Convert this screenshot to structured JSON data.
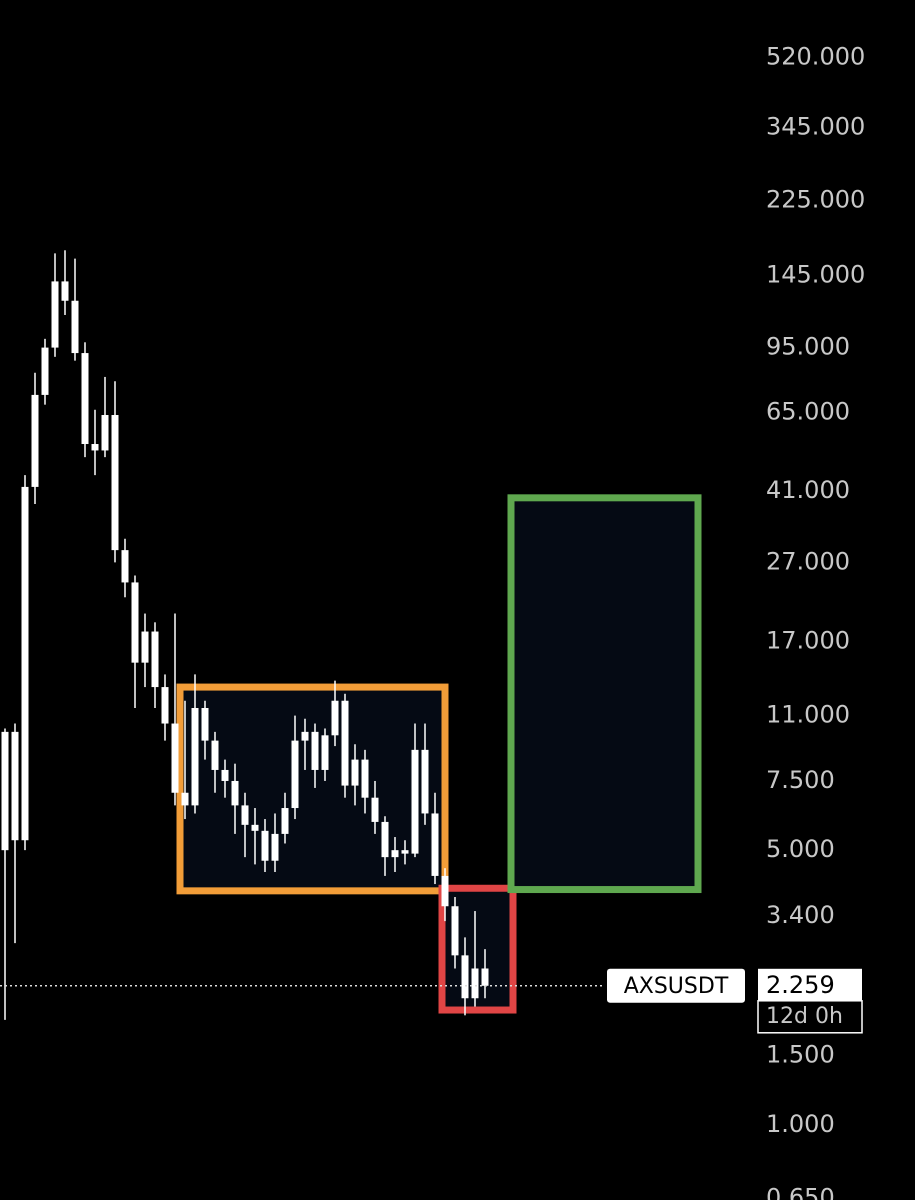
{
  "chart_data": {
    "type": "candlestick",
    "symbol": "AXSUSDT",
    "last_price": {
      "value": 2.259,
      "label": "2.259"
    },
    "countdown": "12d 0h",
    "log_scale": true,
    "color": "#ffffff",
    "ylim": [
      0.644,
      728
    ],
    "yticks": [
      {
        "value": 520,
        "label": "520.000"
      },
      {
        "value": 345,
        "label": "345.000"
      },
      {
        "value": 225,
        "label": "225.000"
      },
      {
        "value": 145,
        "label": "145.000"
      },
      {
        "value": 95,
        "label": "95.000"
      },
      {
        "value": 65,
        "label": "65.000"
      },
      {
        "value": 41,
        "label": "41.000"
      },
      {
        "value": 27,
        "label": "27.000"
      },
      {
        "value": 17,
        "label": "17.000"
      },
      {
        "value": 11,
        "label": "11.000"
      },
      {
        "value": 7.5,
        "label": "7.500"
      },
      {
        "value": 5,
        "label": "5.000"
      },
      {
        "value": 3.4,
        "label": "3.400"
      },
      {
        "value": 1.5,
        "label": "1.500"
      },
      {
        "value": 1,
        "label": "1.000"
      },
      {
        "value": 0.65,
        "label": "0.650"
      }
    ],
    "open": [
      5,
      10,
      5.3,
      42,
      72,
      95,
      140,
      125,
      92,
      54,
      52,
      64,
      29,
      24,
      15,
      18,
      13,
      10.5,
      7,
      6.5,
      11.5,
      9.5,
      8,
      7.5,
      6.5,
      5.8,
      5.6,
      4.7,
      5.5,
      6.4,
      9.5,
      10,
      8,
      9.8,
      12,
      7.3,
      8.5,
      6.8,
      5.9,
      4.8,
      5.0,
      4.9,
      9,
      6.2,
      4.3,
      3.6,
      2.7,
      2.1,
      2.5
    ],
    "high": [
      10.2,
      10.5,
      45,
      82,
      100,
      165,
      168,
      160,
      98,
      66,
      80,
      78,
      31,
      25,
      20,
      19,
      14,
      20,
      12,
      14,
      12,
      10,
      8.5,
      8.3,
      7,
      6.4,
      6,
      6.2,
      7,
      11,
      10.8,
      10.5,
      10.2,
      13.5,
      12.5,
      9.3,
      9,
      7.5,
      6.1,
      5.4,
      5.3,
      10.5,
      10.5,
      7,
      4.5,
      3.8,
      3.0,
      3.5,
      2.8
    ],
    "low": [
      1.85,
      2.9,
      5,
      38,
      68,
      90,
      115,
      88,
      50,
      45,
      50,
      27,
      22,
      11.5,
      13,
      11.5,
      9.5,
      6.5,
      6,
      6.2,
      8.5,
      7,
      6.8,
      5.5,
      4.8,
      4.6,
      4.4,
      4.4,
      5.2,
      6,
      8,
      7.2,
      7.5,
      9.2,
      6.8,
      6.5,
      6.2,
      5.5,
      4.3,
      4.4,
      4.6,
      4.8,
      5.8,
      4.1,
      3.3,
      2.5,
      1.9,
      2.0,
      2.1
    ],
    "close": [
      10,
      5.3,
      42,
      72,
      95,
      140,
      125,
      92,
      54,
      52,
      64,
      29,
      24,
      15,
      18,
      13,
      10.5,
      7,
      6.5,
      11.5,
      9.5,
      8,
      7.5,
      6.5,
      5.8,
      5.6,
      4.7,
      5.5,
      6.4,
      9.5,
      10,
      8,
      9.8,
      12,
      7.3,
      8.5,
      6.8,
      5.9,
      4.8,
      5.0,
      4.9,
      9,
      6.2,
      4.3,
      3.6,
      2.7,
      2.1,
      2.5,
      2.259
    ],
    "zones": [
      {
        "low": 3.94,
        "high": 13.0,
        "color": "#f29d38"
      },
      {
        "low": 1.96,
        "high": 4.0,
        "color": "#e04545"
      },
      {
        "low": 3.97,
        "high": 39.4,
        "color": "#5fa84f"
      }
    ]
  }
}
